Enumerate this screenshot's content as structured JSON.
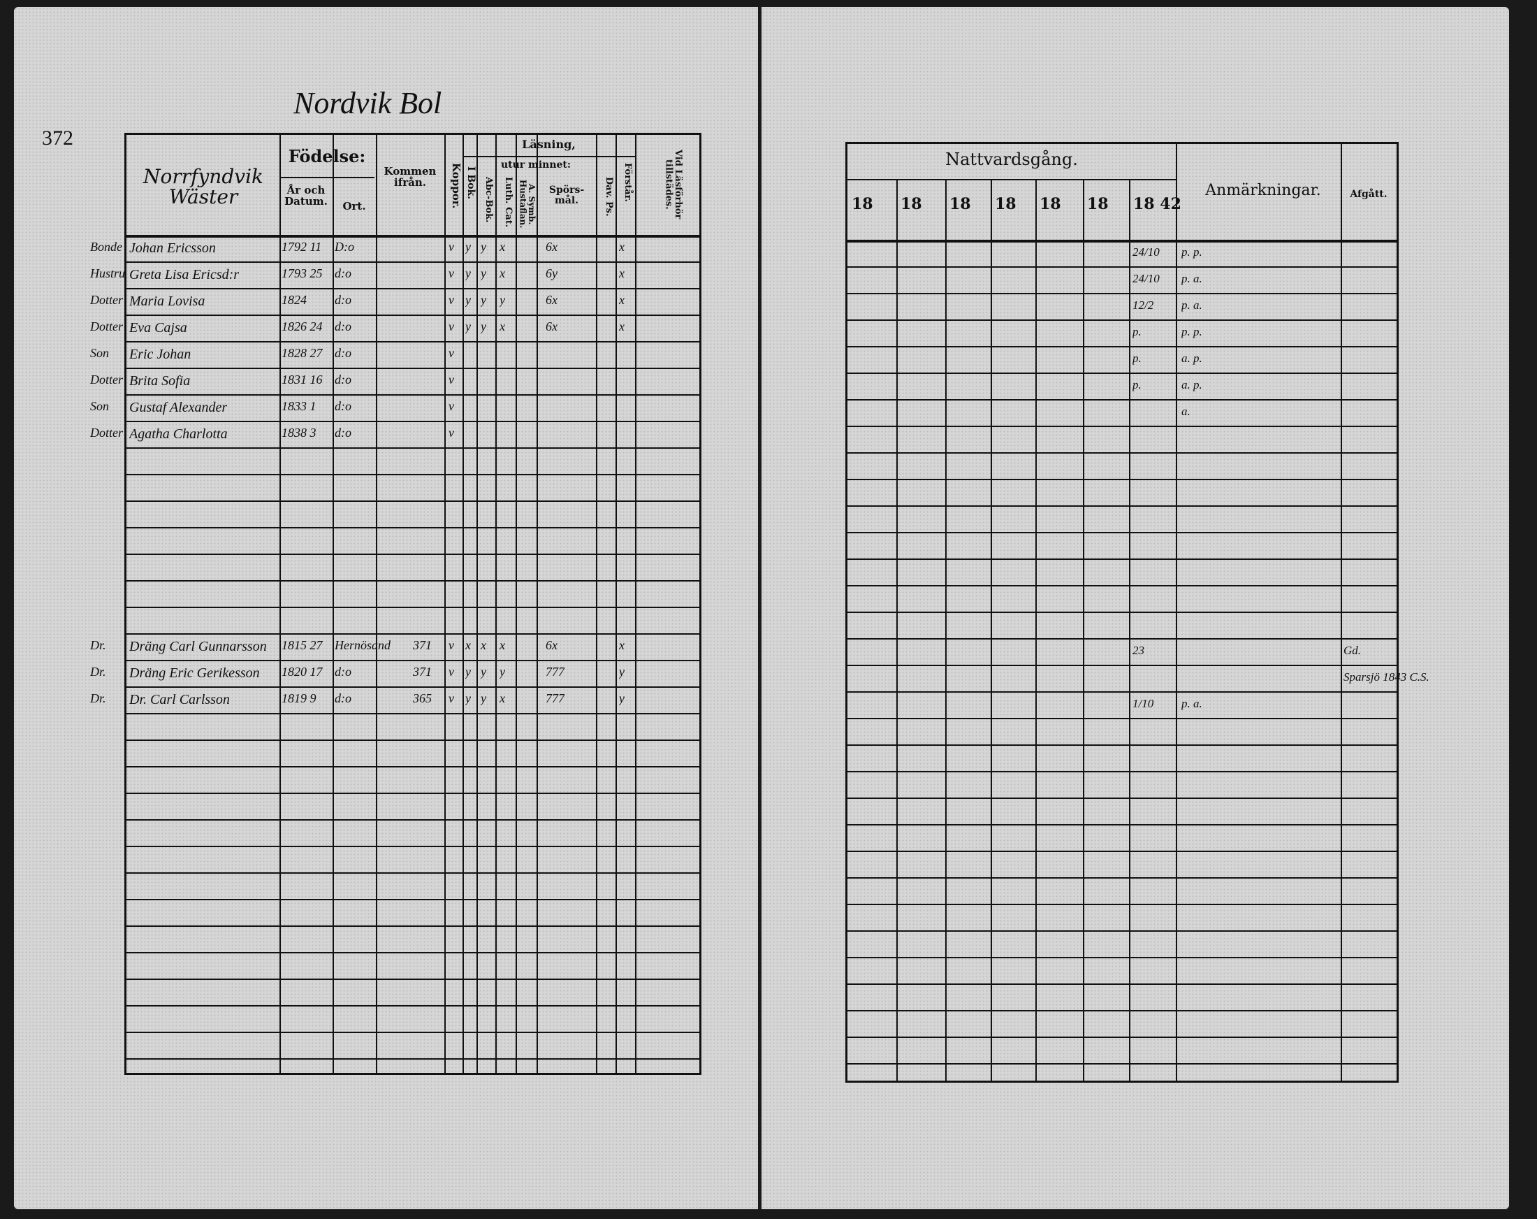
{
  "left_page": {
    "page_number": "372",
    "place_title": "Nordvik Bol",
    "household_label": "Norrfyndvik Wäster",
    "headers": {
      "fodelse": "Födelse:",
      "ar_och_datum": "År och Datum.",
      "ort": "Ort.",
      "kommen_ifran": "Kommen ifrån.",
      "koppor": "Koppor.",
      "lasning": "Läsning,",
      "i_bok": "I Bok.",
      "utur_minnet": "utur minnet:",
      "abc_bok": "Abc-Bok.",
      "luth_cat": "Luth. Cat.",
      "a_symb": "A. Symb. Hustaflan.",
      "sporsmal": "Spörs-mål.",
      "dav_ps": "Dav. Ps.",
      "forstar": "Förstår.",
      "vid_lasforhor": "Vid Läsförhör tillstädes."
    },
    "entries": [
      {
        "rel": "Bonde",
        "name": "Johan Ericsson",
        "year": "1792 11",
        "ort": "D:o",
        "kommen": "",
        "koppor": "v",
        "ibok": "y",
        "abc": "y",
        "luth": "x",
        "spors": "6x",
        "forstar": "x"
      },
      {
        "rel": "Hustru",
        "name": "Greta Lisa Ericsd:r",
        "year": "1793 25",
        "ort": "d:o",
        "kommen": "",
        "koppor": "v",
        "ibok": "y",
        "abc": "y",
        "luth": "x",
        "spors": "6y",
        "forstar": "x"
      },
      {
        "rel": "Dotter",
        "name": "Maria Lovisa",
        "year": "1824",
        "ort": "d:o",
        "kommen": "",
        "koppor": "v",
        "ibok": "y",
        "abc": "y",
        "luth": "y",
        "spors": "6x",
        "forstar": "x"
      },
      {
        "rel": "Dotter",
        "name": "Eva Cajsa",
        "year": "1826 24",
        "ort": "d:o",
        "kommen": "",
        "koppor": "v",
        "ibok": "y",
        "abc": "y",
        "luth": "x",
        "spors": "6x",
        "forstar": "x"
      },
      {
        "rel": "Son",
        "name": "Eric Johan",
        "year": "1828 27",
        "ort": "d:o",
        "kommen": "",
        "koppor": "v",
        "ibok": "",
        "abc": "",
        "luth": "",
        "spors": "",
        "forstar": ""
      },
      {
        "rel": "Dotter",
        "name": "Brita Sofia",
        "year": "1831 16",
        "ort": "d:o",
        "kommen": "",
        "koppor": "v",
        "ibok": "",
        "abc": "",
        "luth": "",
        "spors": "",
        "forstar": ""
      },
      {
        "rel": "Son",
        "name": "Gustaf Alexander",
        "year": "1833 1",
        "ort": "d:o",
        "kommen": "",
        "koppor": "v",
        "ibok": "",
        "abc": "",
        "luth": "",
        "spors": "",
        "forstar": ""
      },
      {
        "rel": "Dotter",
        "name": "Agatha Charlotta",
        "year": "1838 3",
        "ort": "d:o",
        "kommen": "",
        "koppor": "v",
        "ibok": "",
        "abc": "",
        "luth": "",
        "spors": "",
        "forstar": ""
      }
    ],
    "lower_entries": [
      {
        "rel": "Dr.",
        "name": "Dräng Carl Gunnarsson",
        "year": "1815 27",
        "ort": "Hernösand",
        "kommen": "371",
        "koppor": "v",
        "ibok": "x",
        "abc": "x",
        "luth": "x",
        "spors": "6x",
        "forstar": "x"
      },
      {
        "rel": "Dr.",
        "name": "Dräng Eric Gerikesson",
        "year": "1820 17",
        "ort": "d:o",
        "kommen": "371",
        "koppor": "v",
        "ibok": "y",
        "abc": "y",
        "luth": "y",
        "spors": "777",
        "forstar": "y"
      },
      {
        "rel": "Dr.",
        "name": "Dr. Carl Carlsson",
        "year": "1819 9",
        "ort": "d:o",
        "kommen": "365",
        "koppor": "v",
        "ibok": "y",
        "abc": "y",
        "luth": "x",
        "spors": "777",
        "forstar": "y"
      }
    ]
  },
  "right_page": {
    "nattvardsgang": "Nattvardsgång.",
    "year_headers": [
      "18",
      "18",
      "18",
      "18",
      "18",
      "18",
      "18 42"
    ],
    "anmarkningar": "Anmärkningar.",
    "afgatt": "Afgått.",
    "remarks": [
      {
        "natt": "24/10",
        "anm": "p. p."
      },
      {
        "natt": "24/10",
        "anm": "p. a."
      },
      {
        "natt": "12/2",
        "anm": "p. a."
      },
      {
        "natt": "p.",
        "anm": "p. p."
      },
      {
        "natt": "p.",
        "anm": "a. p."
      },
      {
        "natt": "p.",
        "anm": "a. p."
      },
      {
        "natt": "",
        "anm": "a."
      }
    ],
    "lower_remarks": [
      {
        "natt": "23",
        "anm": "",
        "afgatt": "Gd."
      },
      {
        "natt": "",
        "anm": "",
        "afgatt": "Sparsjö 1843 C.S."
      },
      {
        "natt": "1/10",
        "anm": "p. a.",
        "afgatt": ""
      }
    ]
  }
}
